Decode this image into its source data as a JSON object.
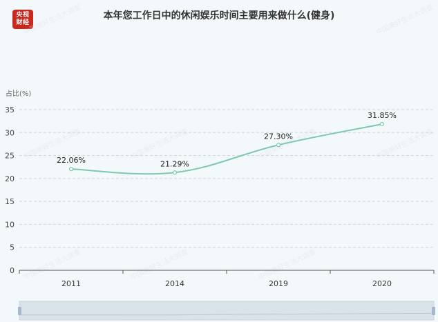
{
  "logo": {
    "line1": "央视",
    "line2": "财经"
  },
  "watermark": "中国美好生活大调查",
  "chart_data": {
    "type": "line",
    "title": "本年您工作日中的休闲娱乐时间主要用来做什么(健身)",
    "ylabel": "占比(%)",
    "xlabel": "",
    "categories": [
      "2011",
      "2014",
      "2019",
      "2020"
    ],
    "series": [
      {
        "values": [
          22.06,
          21.29,
          27.3,
          31.85
        ],
        "labels": [
          "22.06%",
          "21.29%",
          "27.30%",
          "31.85%"
        ]
      }
    ],
    "ylim": [
      0,
      35
    ],
    "yticks": [
      0,
      5,
      10,
      15,
      20,
      25,
      30,
      35
    ],
    "grid": true,
    "line_color": "#7ec7b0"
  }
}
